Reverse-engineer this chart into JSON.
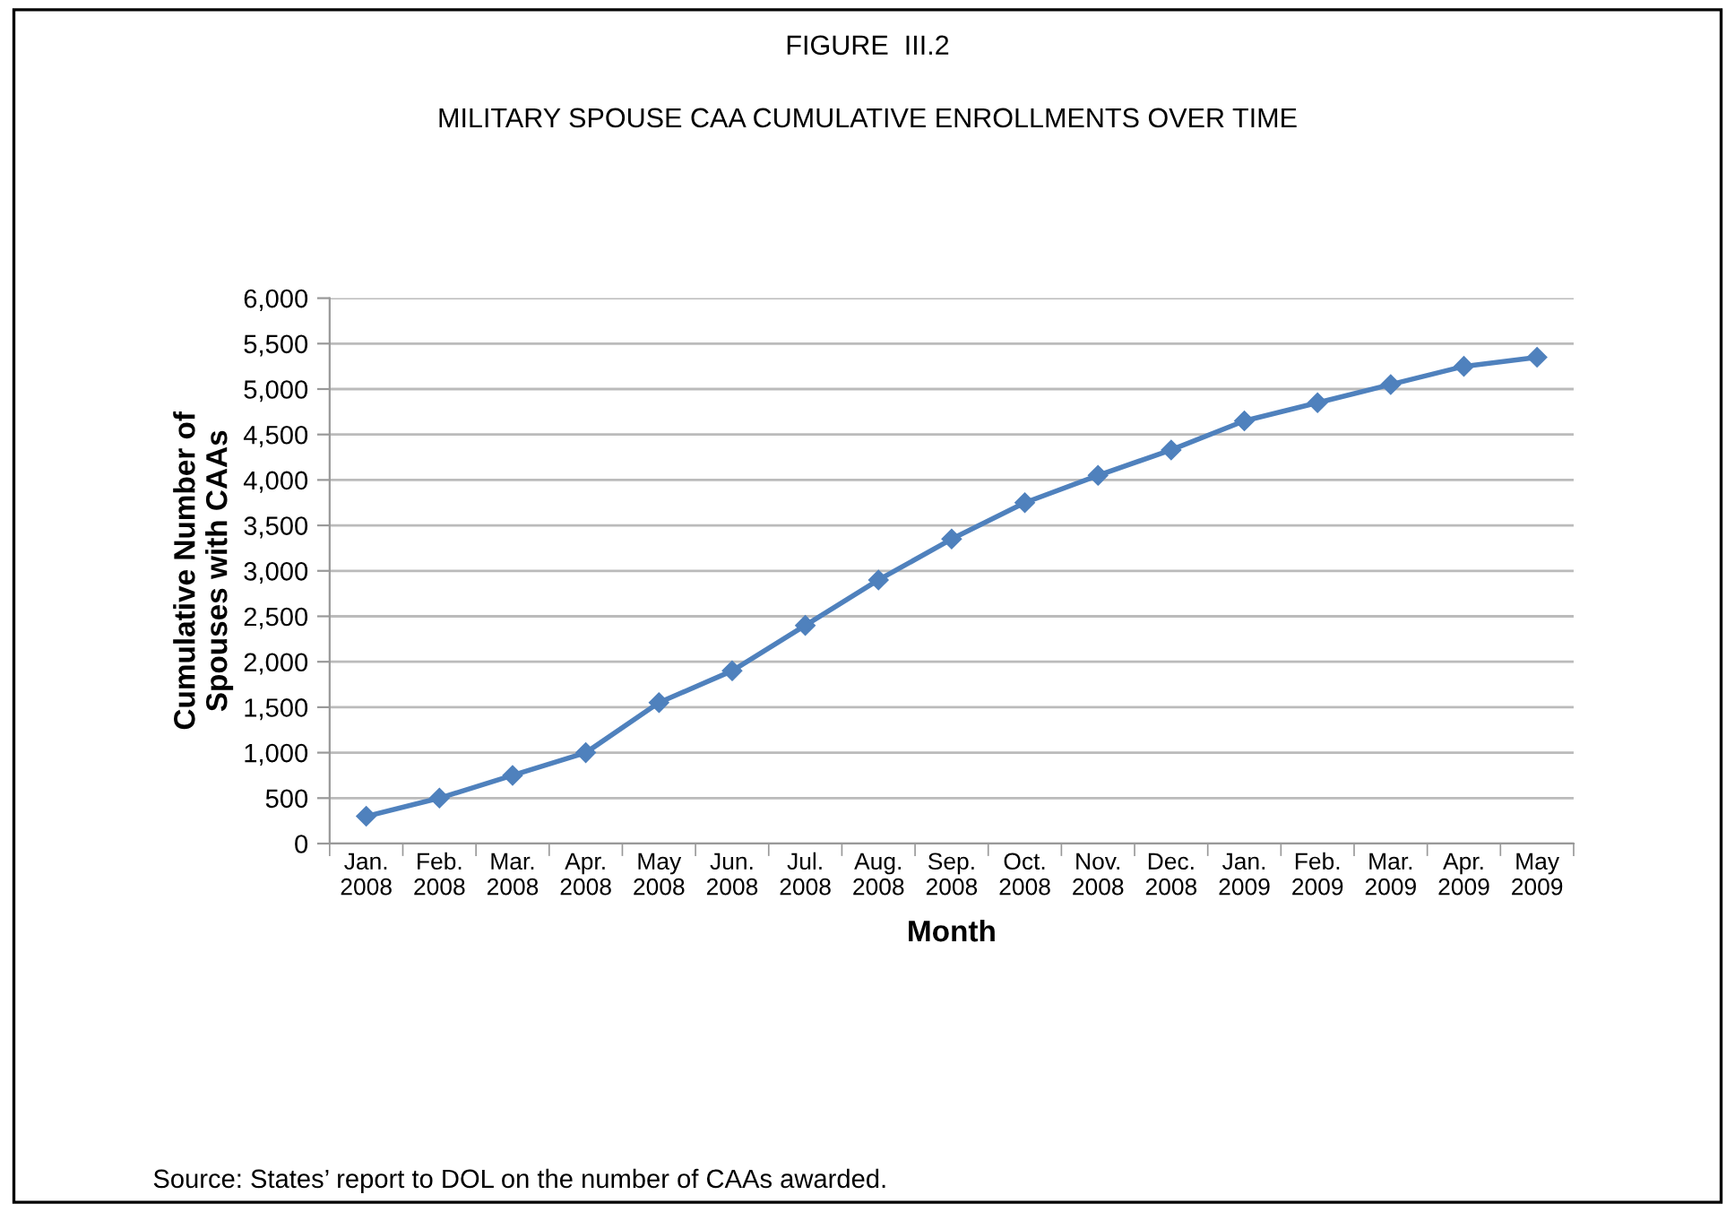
{
  "chart_data": {
    "type": "line",
    "title": "FIGURE  III.2",
    "subtitle": "MILITARY SPOUSE CAA CUMULATIVE ENROLLMENTS OVER TIME",
    "xlabel": "Month",
    "ylabel": "Cumulative Number of\nSpouses with CAAs",
    "categories": [
      "Jan.\n2008",
      "Feb.\n2008",
      "Mar.\n2008",
      "Apr.\n2008",
      "May\n2008",
      "Jun.\n2008",
      "Jul.\n2008",
      "Aug.\n2008",
      "Sep.\n2008",
      "Oct.\n2008",
      "Nov.\n2008",
      "Dec.\n2008",
      "Jan.\n2009",
      "Feb.\n2009",
      "Mar.\n2009",
      "Apr.\n2009",
      "May\n2009"
    ],
    "series": [
      {
        "color": "#4f81bd",
        "values": [
          300,
          500,
          750,
          1000,
          1550,
          1900,
          2400,
          2900,
          3350,
          3750,
          4050,
          4330,
          4650,
          4850,
          5050,
          5250,
          5350
        ]
      }
    ],
    "ylim": [
      0,
      6000
    ],
    "yticks": [
      0,
      {
        "value": 500,
        "label": "500"
      },
      {
        "value": 1000,
        "label": "1,000"
      },
      {
        "value": 1500,
        "label": "1,500"
      },
      {
        "value": 2000,
        "label": "2,000"
      },
      {
        "value": 2500,
        "label": "2,500"
      },
      {
        "value": 3000,
        "label": "3,000"
      },
      {
        "value": 3500,
        "label": "3,500"
      },
      {
        "value": 4000,
        "label": "4,000"
      },
      {
        "value": 4500,
        "label": "4,500"
      },
      {
        "value": 5000,
        "label": "5,000"
      },
      {
        "value": 5500,
        "label": "5,500"
      },
      {
        "value": 6000,
        "label": "6,000"
      }
    ],
    "grid": "y",
    "marker": "diamond",
    "line_style": "solid",
    "legend": false,
    "annotations": [
      "Source: States’ report to DOL on the number of CAAs awarded."
    ]
  }
}
